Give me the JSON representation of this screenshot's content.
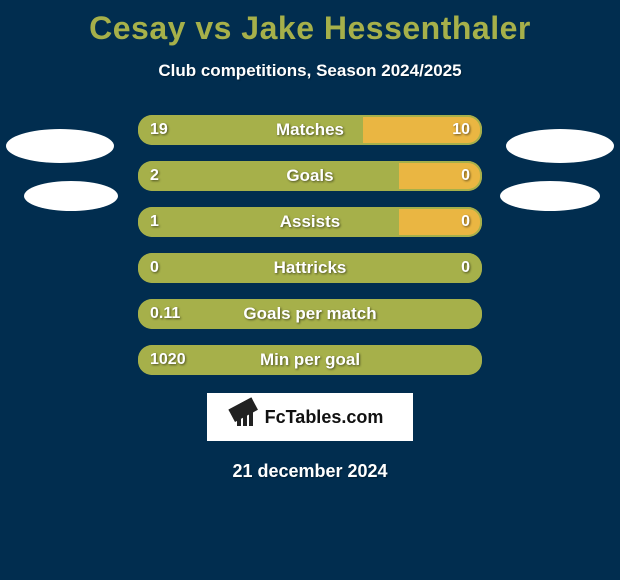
{
  "colors": {
    "background": "#012d4f",
    "title": "#a6b04a",
    "subtitle_text": "#ffffff",
    "bar_outline": "#a6b04a",
    "left_fill": "#a6b04a",
    "right_fill": "#eab642",
    "empty_fill": "#012d4f",
    "label_text": "#ffffff",
    "date_text": "#ffffff",
    "ellipse": "#ffffff"
  },
  "typography": {
    "title_fontsize": 32,
    "subtitle_fontsize": 17,
    "bar_label_fontsize": 17,
    "value_fontsize": 16,
    "date_fontsize": 18,
    "logo_fontsize": 18
  },
  "title": "Cesay vs Jake Hessenthaler",
  "subtitle": "Club competitions, Season 2024/2025",
  "stats": [
    {
      "label": "Matches",
      "left_display": "19",
      "right_display": "10",
      "left_pct": 65.5,
      "right_pct": 34.5
    },
    {
      "label": "Goals",
      "left_display": "2",
      "right_display": "0",
      "left_pct": 76.0,
      "right_pct": 24.0
    },
    {
      "label": "Assists",
      "left_display": "1",
      "right_display": "0",
      "left_pct": 76.0,
      "right_pct": 24.0
    },
    {
      "label": "Hattricks",
      "left_display": "0",
      "right_display": "0",
      "left_pct": 100.0,
      "right_pct": 0.0
    },
    {
      "label": "Goals per match",
      "left_display": "0.11",
      "right_display": "",
      "left_pct": 100.0,
      "right_pct": 0.0
    },
    {
      "label": "Min per goal",
      "left_display": "1020",
      "right_display": "",
      "left_pct": 100.0,
      "right_pct": 0.0
    }
  ],
  "logo_text": "FcTables.com",
  "date": "21 december 2024"
}
